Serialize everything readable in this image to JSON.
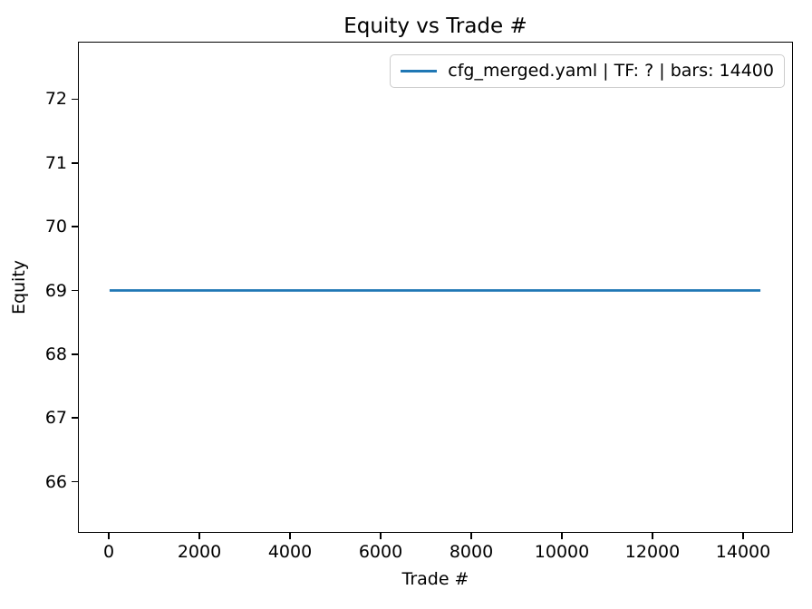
{
  "chart_data": {
    "type": "line",
    "title": "Equity vs Trade #",
    "xlabel": "Trade #",
    "ylabel": "Equity",
    "series": [
      {
        "name": "cfg_merged.yaml | TF: ? | bars: 14400",
        "color": "#1f77b4",
        "x": [
          0,
          14400
        ],
        "y": [
          69.0,
          69.0
        ]
      }
    ],
    "x_ticks": [
      0,
      2000,
      4000,
      6000,
      8000,
      10000,
      12000,
      14000
    ],
    "y_ticks": [
      66,
      67,
      68,
      69,
      70,
      71,
      72
    ],
    "xlim": [
      -680,
      15100
    ],
    "ylim": [
      65.2,
      72.9
    ],
    "grid": false,
    "legend_position": "upper right",
    "line_width": 2.8
  }
}
